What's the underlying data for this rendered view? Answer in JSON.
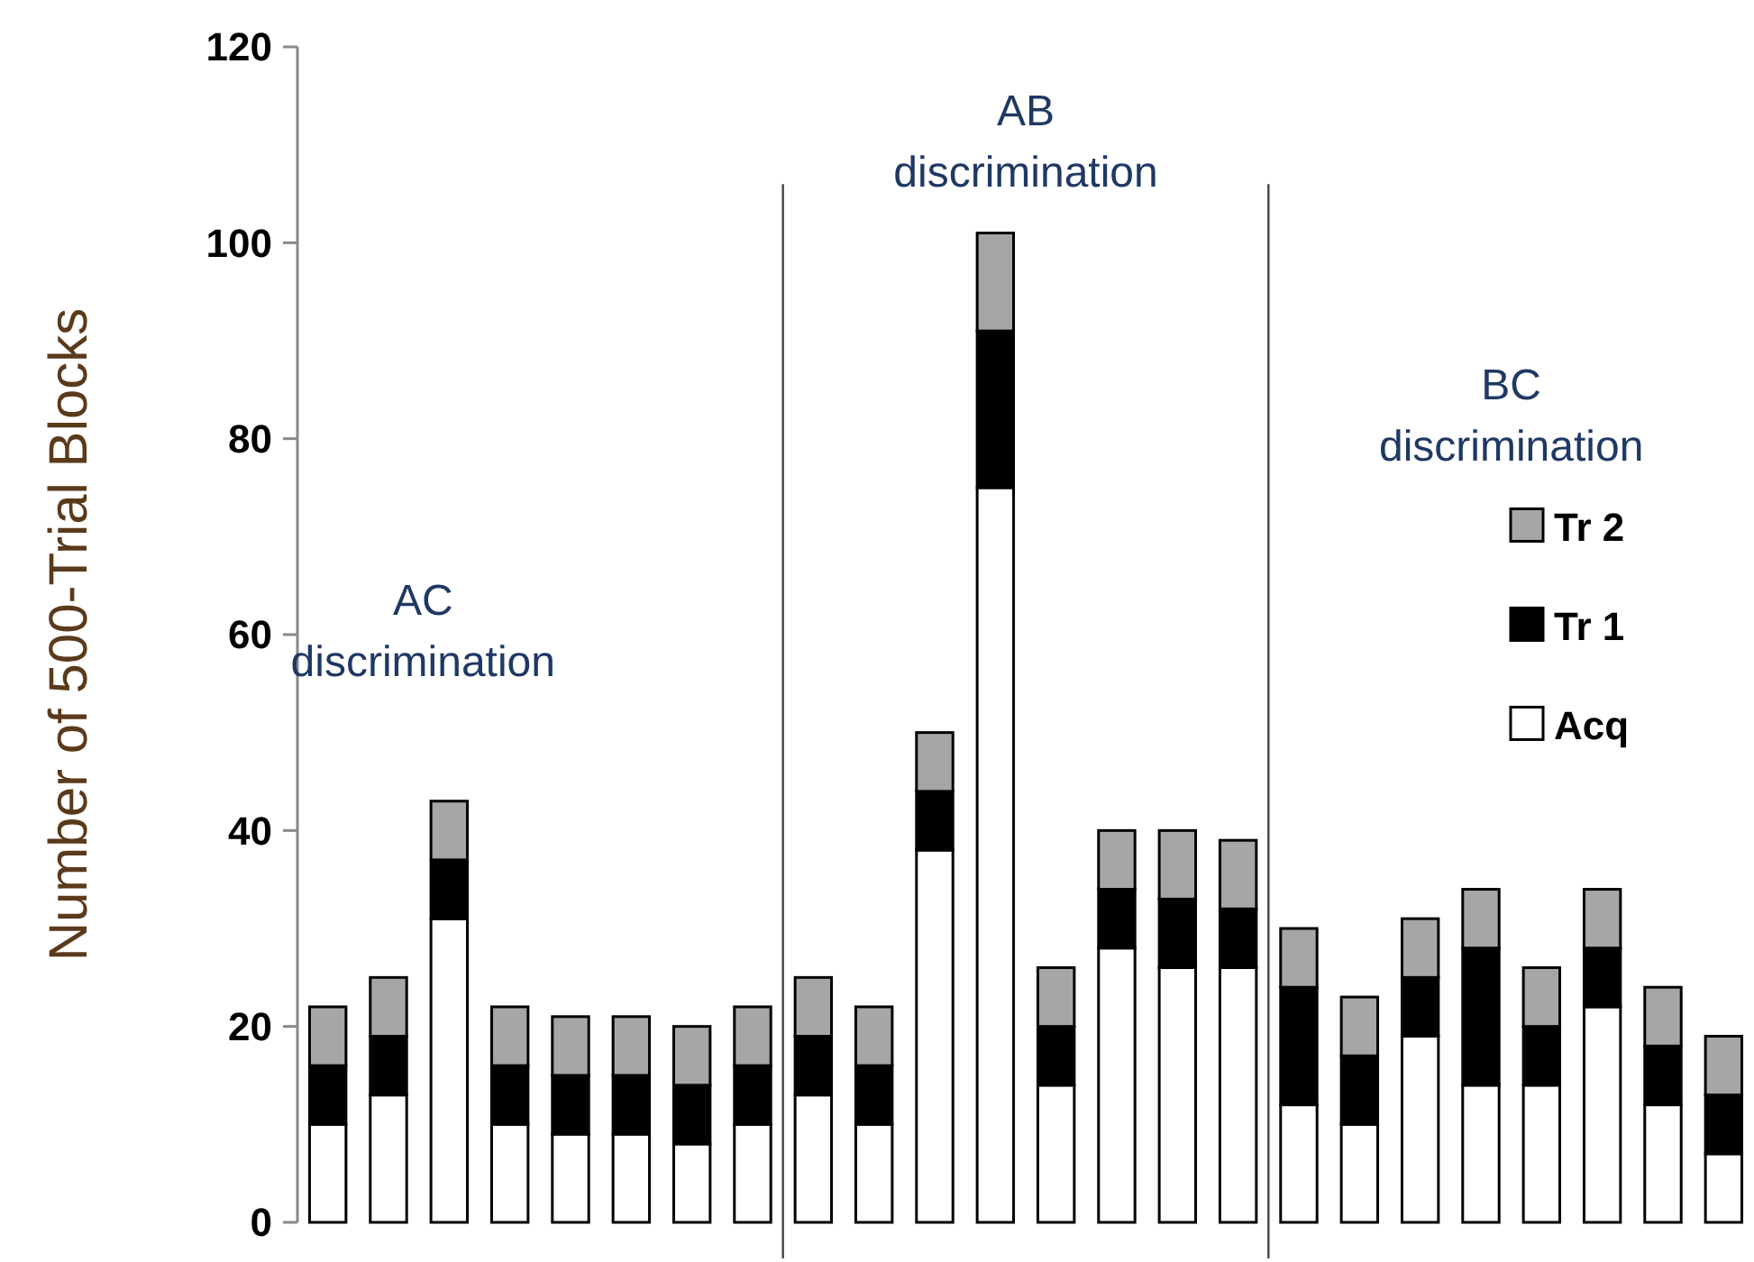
{
  "chart_data": {
    "type": "bar",
    "stacked": true,
    "ylabel": "Number of 500-Trial Blocks",
    "categories": [
      null,
      null,
      null,
      null,
      null,
      null,
      null,
      null,
      null,
      null,
      null,
      null,
      null,
      null,
      null,
      null,
      null,
      null,
      null,
      null,
      null,
      null,
      null,
      null
    ],
    "series": [
      {
        "name": "Acq",
        "color": "#ffffff",
        "values": [
          10,
          13,
          31,
          10,
          9,
          9,
          8,
          10,
          13,
          10,
          38,
          75,
          14,
          28,
          26,
          26,
          12,
          10,
          19,
          14,
          14,
          22,
          12,
          7
        ]
      },
      {
        "name": "Tr 1",
        "color": "#000000",
        "values": [
          6,
          6,
          6,
          6,
          6,
          6,
          6,
          6,
          6,
          6,
          6,
          16,
          6,
          6,
          7,
          6,
          12,
          7,
          6,
          14,
          6,
          6,
          6,
          6
        ]
      },
      {
        "name": "Tr 2",
        "color": "#a6a6a6",
        "values": [
          6,
          6,
          6,
          6,
          6,
          6,
          6,
          6,
          6,
          6,
          6,
          10,
          6,
          6,
          7,
          7,
          6,
          6,
          6,
          6,
          6,
          6,
          6,
          6
        ]
      }
    ],
    "ylim": [
      0,
      120
    ],
    "yticks": [
      0,
      20,
      40,
      60,
      80,
      100,
      120
    ],
    "legend": "right",
    "annotations": [
      "AC\ndiscrimination",
      "AB\ndiscrimination",
      "BC\ndiscrimination"
    ]
  }
}
